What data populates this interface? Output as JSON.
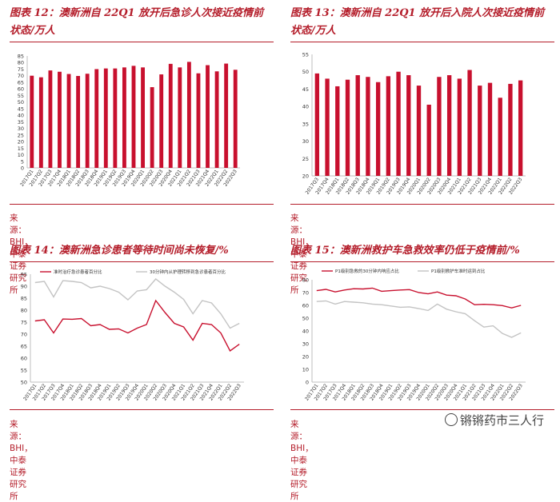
{
  "panels": [
    {
      "title_line1": "图表 12：澳新洲自 22Q1 放开后急诊人次接近疫情前",
      "title_line2": "状态/万人",
      "source": "来源：BHI，中泰证券研究所",
      "chart_data": {
        "type": "bar",
        "categories": [
          "2017Q1",
          "2017Q2",
          "2017Q3",
          "2017Q4",
          "2018Q1",
          "2018Q2",
          "2018Q3",
          "2018Q4",
          "2019Q1",
          "2019Q2",
          "2019Q3",
          "2019Q4",
          "2020Q1",
          "2020Q2",
          "2020Q3",
          "2020Q4",
          "2021Q1",
          "2021Q2",
          "2021Q3",
          "2021Q4",
          "2022Q1",
          "2022Q2",
          "2022Q3"
        ],
        "values": [
          70,
          68.8,
          74,
          73,
          71.3,
          69.8,
          71.5,
          75,
          75.5,
          75.5,
          76.3,
          77.5,
          76.3,
          61.3,
          71,
          79,
          76.3,
          80.5,
          71.8,
          78,
          73.3,
          79.2,
          74.5
        ],
        "ylim": [
          0,
          85
        ],
        "yticks": [
          0,
          5,
          10,
          15,
          20,
          25,
          30,
          35,
          40,
          45,
          50,
          55,
          60,
          65,
          70,
          75,
          80,
          85
        ],
        "color": "#c8102e"
      }
    },
    {
      "title_line1": "图表 13：澳新洲自 22Q1 放开后入院人次接近疫情前",
      "title_line2": "状态/万人",
      "source": "来源：BHI，中泰证券研究所",
      "chart_data": {
        "type": "bar",
        "categories": [
          "2017Q3",
          "2017Q4",
          "2018Q1",
          "2018Q2",
          "2018Q3",
          "2018Q4",
          "2019Q1",
          "2019Q2",
          "2019Q3",
          "2019Q4",
          "2020Q1",
          "2020Q2",
          "2020Q3",
          "2020Q4",
          "2021Q1",
          "2021Q2",
          "2021Q3",
          "2021Q4",
          "2022Q1",
          "2022Q2",
          "2022Q3"
        ],
        "values": [
          49.5,
          48,
          45.8,
          47.7,
          49,
          48.5,
          47,
          48.7,
          50,
          49,
          46,
          40.5,
          48.5,
          49,
          48,
          50.5,
          46,
          46.8,
          42.5,
          46.5,
          47.5
        ],
        "ylim": [
          20,
          55
        ],
        "yticks": [
          20,
          25,
          30,
          35,
          40,
          45,
          50,
          55
        ],
        "color": "#c8102e"
      }
    },
    {
      "title_line1": "图表 14：澳新洲急诊患者等待时间尚未恢复/%",
      "source": "来源：BHI，中泰证券研究所",
      "chart_data": {
        "type": "line",
        "categories": [
          "2017Q1",
          "2017Q2",
          "2017Q3",
          "2017Q4",
          "2018Q1",
          "2018Q2",
          "2018Q3",
          "2018Q4",
          "2019Q1",
          "2019Q2",
          "2019Q3",
          "2019Q4",
          "2020Q1",
          "2020Q2",
          "2020Q3",
          "2020Q4",
          "2021Q1",
          "2021Q2",
          "2021Q3",
          "2021Q4",
          "2022Q1",
          "2022Q2",
          "2022Q3"
        ],
        "series": [
          {
            "name": "准时治疗急诊患者百分比",
            "color": "#c8102e",
            "values": [
              75.5,
              76,
              70.5,
              76.3,
              76.2,
              76.5,
              73.5,
              74,
              72,
              72.2,
              70.5,
              72.5,
              74,
              84,
              79,
              74.5,
              73,
              67.5,
              74.5,
              74,
              70.5,
              63,
              65.8
            ]
          },
          {
            "name": "30分钟内从护理转移到急诊患者百分比",
            "color": "#c3c3c3",
            "values": [
              91.5,
              92,
              85.5,
              92.3,
              92,
              91.5,
              89.3,
              90,
              89,
              87.5,
              84.3,
              88,
              88.5,
              93,
              90,
              87.5,
              84.5,
              78.5,
              84,
              83,
              78.5,
              72.5,
              74.5
            ]
          }
        ],
        "ylim": [
          50,
          95
        ],
        "yticks": [
          50,
          55,
          60,
          65,
          70,
          75,
          80,
          85,
          90,
          95
        ]
      }
    },
    {
      "title_line1": "图表 15：澳新洲救护车急救效率仍低于疫情前/%",
      "source": "来源：BHI，中泰证券研究所",
      "chart_data": {
        "type": "line",
        "categories": [
          "2017Q1",
          "2017Q2",
          "2017Q3",
          "2017Q4",
          "2018Q1",
          "2018Q2",
          "2018Q3",
          "2018Q4",
          "2019Q1",
          "2019Q2",
          "2019Q3",
          "2019Q4",
          "2020Q1",
          "2020Q2",
          "2020Q3",
          "2020Q4",
          "2021Q1",
          "2021Q2",
          "2021Q3",
          "2021Q4",
          "2022Q1",
          "2022Q2",
          "2022Q3"
        ],
        "series": [
          {
            "name": "P1级别急救的30分钟内响应占比",
            "color": "#c8102e",
            "values": [
              71.5,
              72.5,
              70.5,
              72,
              73,
              72.8,
              73.5,
              71,
              71.5,
              72,
              72.3,
              70,
              69,
              70.5,
              68,
              67.5,
              65,
              60.5,
              60.8,
              60.5,
              59.8,
              58,
              60
            ]
          },
          {
            "name": "P1级别救护车准时运到占比",
            "color": "#c3c3c3",
            "values": [
              63,
              63.5,
              61,
              63,
              62.5,
              62,
              61,
              60.5,
              59.5,
              58.5,
              58.8,
              57.5,
              56,
              61,
              57,
              55,
              53.5,
              48,
              43,
              44,
              38,
              35,
              38.5
            ]
          }
        ],
        "ylim": [
          0,
          80
        ],
        "yticks": [
          0,
          10,
          20,
          30,
          40,
          50,
          60,
          70,
          80
        ]
      }
    }
  ],
  "watermark": "锵锵药市三人行"
}
